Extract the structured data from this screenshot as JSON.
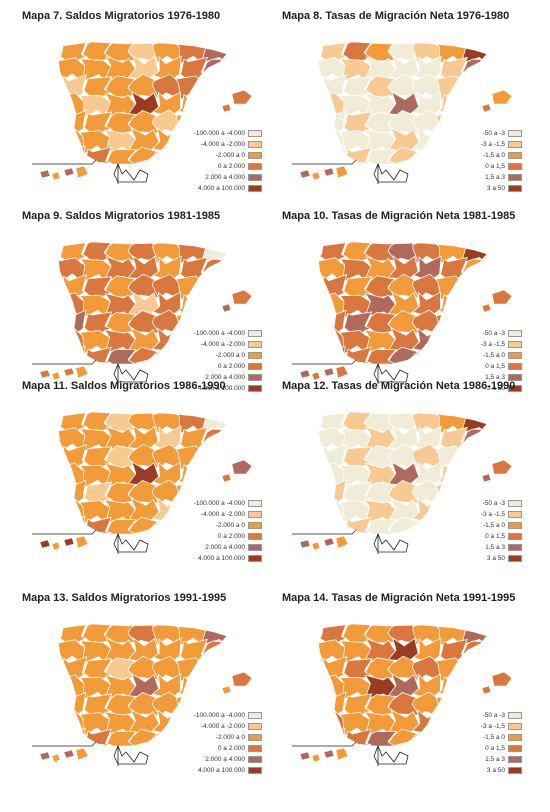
{
  "colors": {
    "c1": "#f1ecd7",
    "c2": "#f8c990",
    "c3": "#f39a39",
    "c4": "#d9773f",
    "c5": "#b06a5d",
    "c6": "#9b3b22",
    "border": "#ffffff"
  },
  "panels": [
    {
      "id": "m7",
      "title": "Mapa 7. Saldos Migratorios 1976-1980",
      "legend": [
        "-100.000 a -4.000",
        "-4.000 a -2.000",
        "-2.000 a 0",
        "0 a 2.000",
        "2.000 a 4.000",
        "4.000 a 100.000"
      ],
      "fills": [
        3,
        3,
        3,
        2,
        3,
        4,
        5,
        3,
        3,
        3,
        2,
        3,
        4,
        5,
        2,
        3,
        3,
        3,
        4,
        4,
        3,
        3,
        2,
        3,
        6,
        3,
        3,
        4,
        3,
        3,
        3,
        3,
        2,
        3,
        3,
        3,
        3,
        2,
        3,
        3,
        3,
        4,
        3,
        4,
        3,
        3,
        3,
        3,
        3,
        4,
        4,
        5,
        3
      ]
    },
    {
      "id": "m8",
      "title": "Mapa 8. Tasas de Migración Neta 1976-1980",
      "legend": [
        "-50 a -3",
        "-3 a -1,5",
        "-1,5 a 0",
        "0 a 1,5",
        "1,5 a 3",
        "3 a 50"
      ],
      "fills": [
        2,
        4,
        3,
        1,
        2,
        3,
        6,
        1,
        2,
        1,
        1,
        1,
        2,
        5,
        1,
        1,
        2,
        1,
        1,
        2,
        4,
        2,
        1,
        1,
        5,
        1,
        2,
        4,
        1,
        2,
        1,
        1,
        1,
        2,
        4,
        1,
        1,
        1,
        2,
        1,
        2,
        4,
        1,
        2,
        1,
        2,
        1,
        3,
        4,
        3,
        4,
        5,
        3
      ]
    },
    {
      "id": "m9",
      "title": "Mapa 9. Saldos Migratorios 1981-1985",
      "legend": [
        "-100.000 a -4.000",
        "-4.000 a -2.000",
        "-2.000 a 0",
        "0 a 2.000",
        "2.000 a 4.000",
        "4.000 a 100.000"
      ],
      "fills": [
        3,
        4,
        3,
        4,
        3,
        4,
        1,
        4,
        3,
        4,
        4,
        3,
        4,
        4,
        3,
        4,
        3,
        4,
        4,
        3,
        4,
        4,
        3,
        4,
        2,
        4,
        3,
        4,
        5,
        4,
        3,
        4,
        4,
        3,
        4,
        4,
        3,
        4,
        3,
        4,
        5,
        4,
        3,
        4,
        5,
        4,
        3,
        4,
        4,
        4,
        5,
        4,
        3
      ]
    },
    {
      "id": "m10",
      "title": "Mapa 10. Tasas de Migración Neta 1981-1985",
      "legend": [
        "-50 a -3",
        "-3 a -1,5",
        "-1,5 a 0",
        "0 a 1,5",
        "1,5 a 3",
        "3 a 50"
      ],
      "fills": [
        4,
        3,
        4,
        5,
        4,
        3,
        6,
        3,
        4,
        3,
        4,
        5,
        4,
        3,
        4,
        3,
        4,
        3,
        4,
        3,
        4,
        3,
        4,
        5,
        3,
        4,
        3,
        4,
        4,
        5,
        4,
        3,
        4,
        4,
        3,
        4,
        4,
        3,
        4,
        5,
        4,
        4,
        5,
        4,
        4,
        5,
        4,
        3,
        4,
        4,
        4,
        5,
        4
      ]
    },
    {
      "id": "m11",
      "title": "Mapa 11. Saldos Migratorios 1986-1990",
      "legend": [
        "-100.000 a -4.000",
        "-4.000 a -2.000",
        "-2.000 a 0",
        "0 a 2.000",
        "2.000 a 4.000",
        "4.000 a 100.000"
      ],
      "fills": [
        3,
        3,
        2,
        3,
        3,
        4,
        1,
        3,
        3,
        3,
        3,
        2,
        3,
        4,
        3,
        3,
        2,
        3,
        3,
        3,
        5,
        3,
        3,
        3,
        6,
        3,
        3,
        4,
        3,
        2,
        3,
        3,
        3,
        3,
        5,
        3,
        3,
        3,
        3,
        2,
        3,
        4,
        3,
        4,
        3,
        3,
        3,
        3,
        5,
        5,
        4,
        6,
        3
      ]
    },
    {
      "id": "m12",
      "title": "Mapa 12. Tasas de Migración Neta 1986-1990",
      "legend": [
        "-50 a -3",
        "-3 a -1,5",
        "-1,5 a 0",
        "0 a 1,5",
        "1,5 a 3",
        "3 a 50"
      ],
      "fills": [
        1,
        2,
        1,
        1,
        2,
        3,
        6,
        1,
        1,
        2,
        1,
        1,
        2,
        5,
        1,
        2,
        1,
        1,
        2,
        1,
        5,
        1,
        1,
        2,
        5,
        1,
        2,
        4,
        2,
        1,
        1,
        2,
        1,
        2,
        5,
        1,
        1,
        2,
        1,
        2,
        3,
        4,
        1,
        2,
        1,
        1,
        2,
        3,
        5,
        4,
        5,
        5,
        3
      ]
    },
    {
      "id": "m13",
      "title": "Mapa 13. Saldos Migratorios 1991-1995",
      "legend": [
        "-100.000 a -4.000",
        "-4.000 a -2.000",
        "-2.000 a 0",
        "0 a 2.000",
        "2.000 a 4.000",
        "4.000 a 100.000"
      ],
      "fills": [
        3,
        3,
        3,
        4,
        3,
        3,
        5,
        3,
        3,
        3,
        3,
        3,
        3,
        4,
        3,
        3,
        2,
        3,
        3,
        3,
        4,
        3,
        3,
        3,
        5,
        3,
        3,
        3,
        3,
        3,
        3,
        3,
        3,
        3,
        4,
        3,
        3,
        3,
        3,
        3,
        3,
        3,
        3,
        4,
        3,
        3,
        3,
        3,
        4,
        4,
        3,
        5,
        3
      ]
    },
    {
      "id": "m14",
      "title": "Mapa 14. Tasas de Migración Neta 1991-1995",
      "legend": [
        "-50 a -3",
        "-3 a -1,5",
        "-1,5 a 0",
        "0 a 1,5",
        "1,5 a 3",
        "3 a 50"
      ],
      "fills": [
        4,
        3,
        3,
        4,
        3,
        3,
        5,
        3,
        3,
        4,
        6,
        3,
        4,
        4,
        3,
        4,
        3,
        3,
        4,
        3,
        5,
        3,
        3,
        6,
        5,
        3,
        3,
        4,
        3,
        3,
        3,
        4,
        3,
        3,
        4,
        4,
        3,
        3,
        3,
        4,
        3,
        5,
        3,
        4,
        5,
        3,
        3,
        4,
        4,
        4,
        4,
        5,
        3
      ]
    }
  ]
}
